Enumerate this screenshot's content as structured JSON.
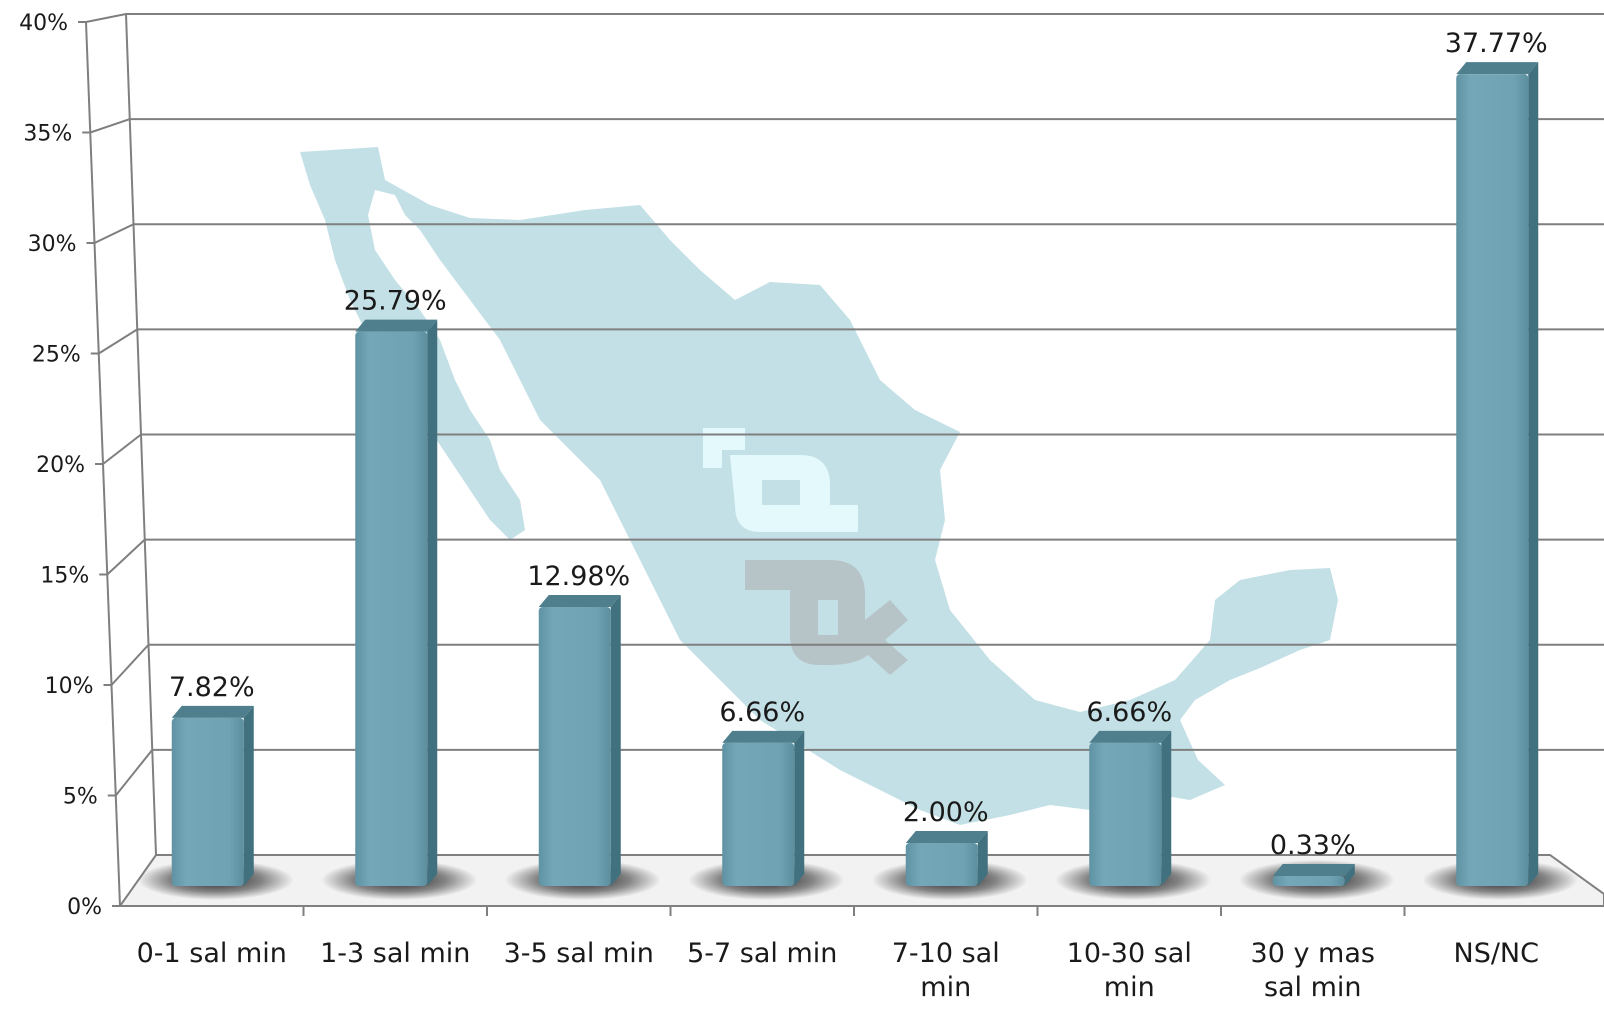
{
  "chart_data": {
    "type": "bar",
    "title": "",
    "xlabel": "",
    "ylabel": "",
    "ylim": [
      0,
      40
    ],
    "yticks": [
      "0%",
      "5%",
      "10%",
      "15%",
      "20%",
      "25%",
      "30%",
      "35%",
      "40%"
    ],
    "grid": true,
    "legend": "none",
    "categories": [
      [
        "0-1 sal min"
      ],
      [
        "1-3 sal min"
      ],
      [
        "3-5 sal min"
      ],
      [
        "5-7 sal min"
      ],
      [
        "7-10 sal",
        "min"
      ],
      [
        "10-30 sal",
        "min"
      ],
      [
        "30 y mas",
        "sal min"
      ],
      [
        "NS/NC"
      ]
    ],
    "values": [
      7.82,
      25.79,
      12.98,
      6.66,
      2.0,
      6.66,
      0.33,
      37.77
    ],
    "data_labels": [
      "7.82%",
      "25.79%",
      "12.98%",
      "6.66%",
      "2.00%",
      "6.66%",
      "0.33%",
      "37.77%"
    ],
    "colors": {
      "bar_front": "#6fa3b3",
      "bar_side": "#41707e",
      "bar_top": "#4f7f8d",
      "gridline": "#7f7f7f",
      "map_watermark": "#c3e0e6"
    },
    "background_watermark": "mexico-map-with-logo"
  }
}
